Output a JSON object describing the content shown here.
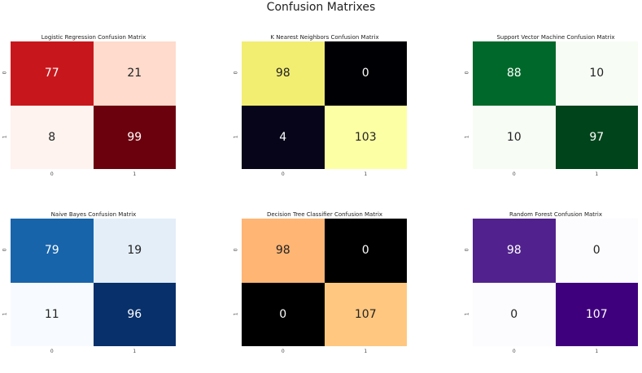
{
  "title": "Confusion Matrixes",
  "chart_data": [
    {
      "type": "heatmap",
      "title": "Logistic Regression Confusion Matrix",
      "colormap": "Reds",
      "x_ticks": [
        "0",
        "1"
      ],
      "y_ticks": [
        "0",
        "1"
      ],
      "values": [
        [
          77,
          21
        ],
        [
          8,
          99
        ]
      ],
      "colors": [
        [
          "#c8171c",
          "#fedbcc"
        ],
        [
          "#fff3ef",
          "#6c010e"
        ]
      ],
      "text_colors": [
        [
          "#ffffff",
          "#222222"
        ],
        [
          "#222222",
          "#ffffff"
        ]
      ]
    },
    {
      "type": "heatmap",
      "title": "K Nearest Neighbors Confusion Matrix",
      "colormap": "inferno",
      "x_ticks": [
        "0",
        "1"
      ],
      "y_ticks": [
        "0",
        "1"
      ],
      "values": [
        [
          98,
          0
        ],
        [
          4,
          103
        ]
      ],
      "colors": [
        [
          "#f2ee72",
          "#000004"
        ],
        [
          "#06051a",
          "#fcffa4"
        ]
      ],
      "text_colors": [
        [
          "#222222",
          "#ffffff"
        ],
        [
          "#ffffff",
          "#222222"
        ]
      ]
    },
    {
      "type": "heatmap",
      "title": "Support Vector Machine Confusion Matrix",
      "colormap": "Greens",
      "x_ticks": [
        "0",
        "1"
      ],
      "y_ticks": [
        "0",
        "1"
      ],
      "values": [
        [
          88,
          10
        ],
        [
          10,
          97
        ]
      ],
      "colors": [
        [
          "#00682a",
          "#f7fcf5"
        ],
        [
          "#f7fcf5",
          "#00441b"
        ]
      ],
      "text_colors": [
        [
          "#ffffff",
          "#222222"
        ],
        [
          "#222222",
          "#ffffff"
        ]
      ]
    },
    {
      "type": "heatmap",
      "title": "Naive Bayes Confusion Matrix",
      "colormap": "Blues",
      "x_ticks": [
        "0",
        "1"
      ],
      "y_ticks": [
        "0",
        "1"
      ],
      "values": [
        [
          79,
          19
        ],
        [
          11,
          96
        ]
      ],
      "colors": [
        [
          "#1764ab",
          "#e3eef8"
        ],
        [
          "#f7fbff",
          "#08306b"
        ]
      ],
      "text_colors": [
        [
          "#ffffff",
          "#222222"
        ],
        [
          "#222222",
          "#ffffff"
        ]
      ]
    },
    {
      "type": "heatmap",
      "title": "Decision Tree Classifier Confusion Matrix",
      "colormap": "copper",
      "x_ticks": [
        "0",
        "1"
      ],
      "y_ticks": [
        "0",
        "1"
      ],
      "values": [
        [
          98,
          0
        ],
        [
          0,
          107
        ]
      ],
      "colors": [
        [
          "#ffb574",
          "#000000"
        ],
        [
          "#000000",
          "#ffc77f"
        ]
      ],
      "text_colors": [
        [
          "#222222",
          "#ffffff"
        ],
        [
          "#ffffff",
          "#222222"
        ]
      ]
    },
    {
      "type": "heatmap",
      "title": "Random Forest Confusion Matrix",
      "colormap": "Purples",
      "x_ticks": [
        "0",
        "1"
      ],
      "y_ticks": [
        "0",
        "1"
      ],
      "values": [
        [
          98,
          0
        ],
        [
          0,
          107
        ]
      ],
      "colors": [
        [
          "#51228d",
          "#fcfbfd"
        ],
        [
          "#fcfbfd",
          "#3f007d"
        ]
      ],
      "text_colors": [
        [
          "#ffffff",
          "#222222"
        ],
        [
          "#222222",
          "#ffffff"
        ]
      ]
    }
  ]
}
